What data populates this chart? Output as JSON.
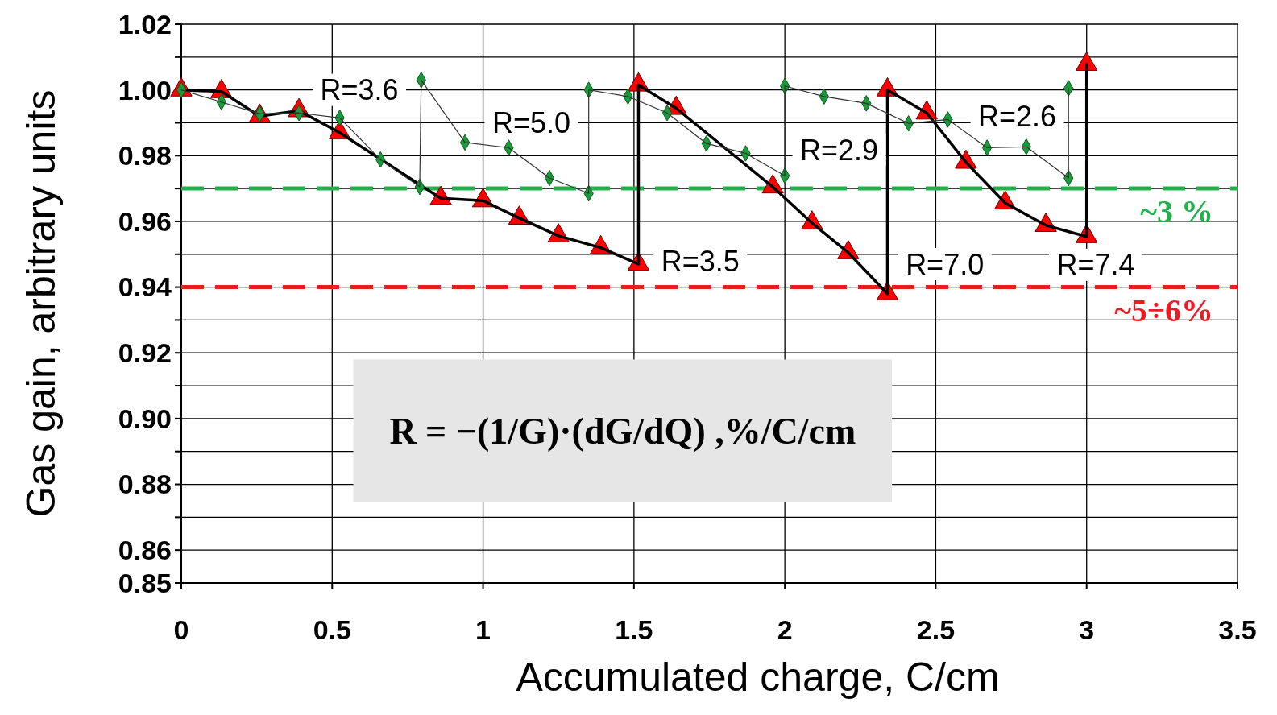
{
  "chart_data": {
    "type": "line",
    "xlabel": "Accumulated charge, C/cm",
    "ylabel": "Gas gain, arbitrary units",
    "xlim": [
      0,
      3.5
    ],
    "xticks": [
      0,
      0.5,
      1,
      1.5,
      2,
      2.5,
      3,
      3.5
    ],
    "ylim": [
      0.85,
      1.02
    ],
    "yticks": [
      0.85,
      0.86,
      {
        "value": 0.87,
        "label": null
      },
      0.88,
      {
        "value": 0.89,
        "label": null
      },
      {
        "value": 0.9,
        "label": "0.90"
      },
      {
        "value": 0.91,
        "label": null
      },
      0.92,
      {
        "value": 0.93,
        "label": null
      },
      0.94,
      {
        "value": 0.95,
        "label": null
      },
      0.96,
      {
        "value": 0.97,
        "label": null
      },
      0.98,
      {
        "value": 0.99,
        "label": null
      },
      {
        "value": 1,
        "label": "1.00"
      },
      {
        "value": 1.01,
        "label": null
      },
      1.02
    ],
    "grid": true,
    "line_style": "solid",
    "series": [
      {
        "color": "#ff0000",
        "marker": "triangle",
        "x": [
          0,
          0.133,
          0.26,
          0.39,
          0.525,
          0.86,
          1.0,
          1.12,
          1.25,
          1.39,
          1.515,
          1.515,
          1.64,
          1.96,
          2.09,
          2.21,
          2.34,
          2.34,
          2.47,
          2.6,
          2.73,
          2.865,
          3.0,
          3.0
        ],
        "values": [
          1.0,
          0.9995,
          0.992,
          0.9937,
          0.987,
          0.967,
          0.9663,
          0.961,
          0.9556,
          0.952,
          0.947,
          1.0015,
          0.9944,
          0.9705,
          0.9595,
          0.9505,
          0.938,
          1.0,
          0.993,
          0.978,
          0.9656,
          0.9588,
          0.9554,
          1.0078
        ]
      },
      {
        "color": "#1a9a3a",
        "marker": "diamond",
        "x": [
          0,
          0.133,
          0.26,
          0.39,
          0.525,
          0.66,
          0.79,
          0.795,
          0.94,
          1.085,
          1.22,
          1.35,
          1.35,
          1.48,
          1.61,
          1.74,
          1.87,
          2.0,
          2.0,
          2.13,
          2.27,
          2.41,
          2.54,
          2.67,
          2.8,
          2.94,
          2.94
        ],
        "values": [
          1.0,
          0.9963,
          0.9927,
          0.993,
          0.9915,
          0.9788,
          0.9705,
          1.003,
          0.984,
          0.9824,
          0.9732,
          0.9685,
          1.0,
          0.998,
          0.993,
          0.9837,
          0.9807,
          0.9739,
          1.0012,
          0.998,
          0.9959,
          0.9898,
          0.991,
          0.9824,
          0.9827,
          0.9732,
          1.0005
        ]
      }
    ],
    "ref_lines": [
      {
        "axis": "y",
        "value": 0.97,
        "color": "#22b14c",
        "line_style": "dashed"
      },
      {
        "axis": "y",
        "value": 0.94,
        "color": "#ed1c24",
        "line_style": "dashed"
      }
    ],
    "annotations": [
      "R=3.6",
      "R=5.0",
      "R=3.5",
      "R=2.9",
      "R=7.0",
      "R=2.6",
      "R=7.4",
      "R = −(1/G)·(dG/dQ) ,%/C/cm",
      "~3 %",
      "~5÷6%"
    ]
  }
}
